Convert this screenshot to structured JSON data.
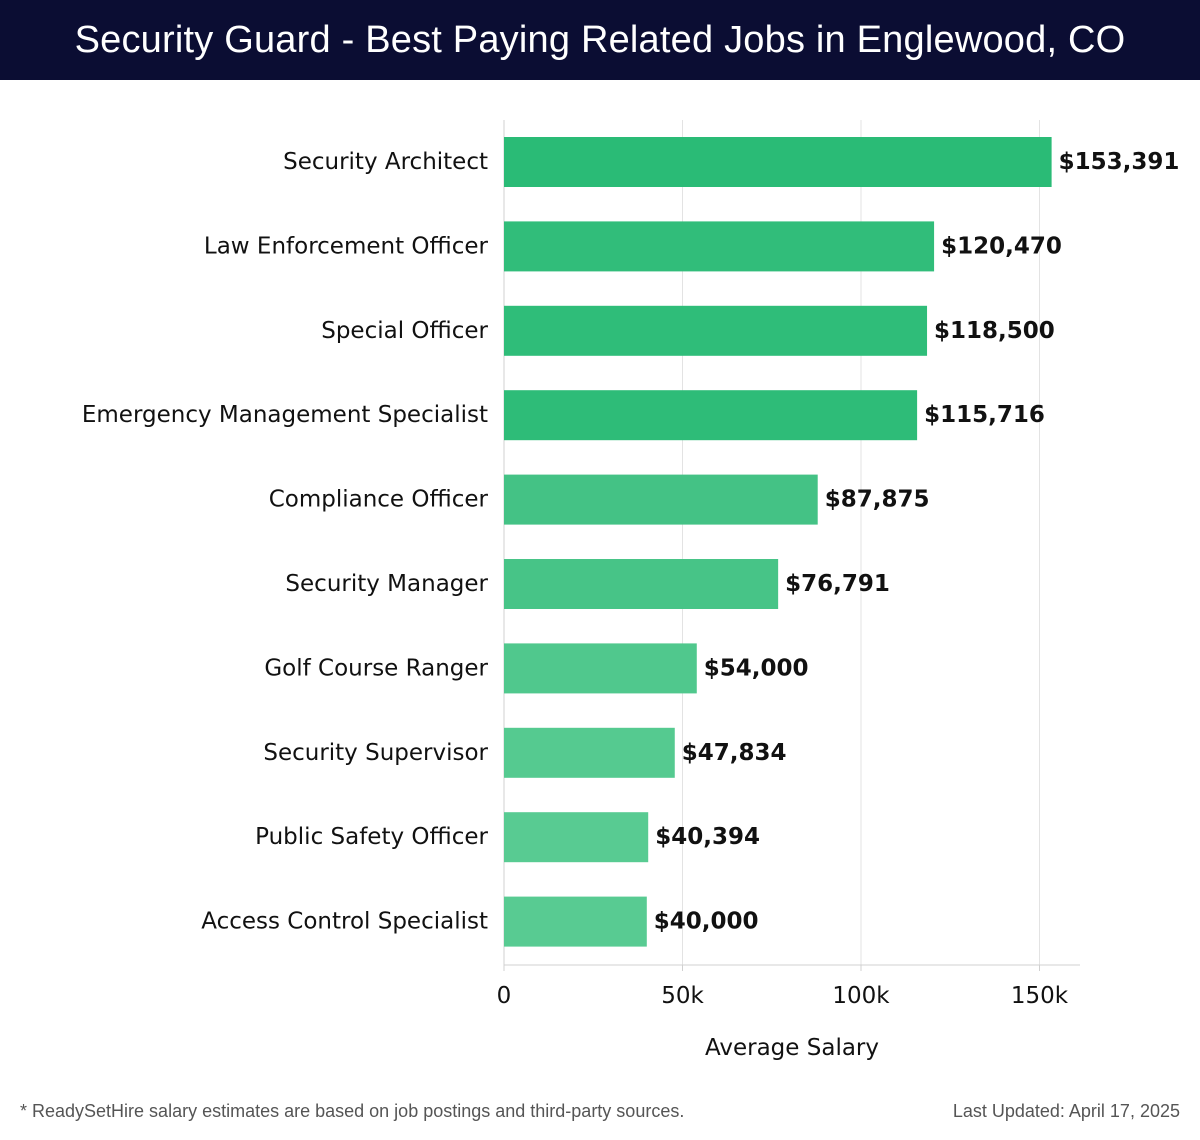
{
  "title": "Security Guard - Best Paying Related Jobs in Englewood, CO",
  "chart_data": {
    "type": "bar",
    "orientation": "horizontal",
    "categories": [
      "Security Architect",
      "Law Enforcement Officer",
      "Special Officer",
      "Emergency Management Specialist",
      "Compliance Officer",
      "Security Manager",
      "Golf Course Ranger",
      "Security Supervisor",
      "Public Safety Officer",
      "Access Control Specialist"
    ],
    "values": [
      153391,
      120470,
      118500,
      115716,
      87875,
      76791,
      54000,
      47834,
      40394,
      40000
    ],
    "data_labels": [
      "$153,391",
      "$120,470",
      "$118,500",
      "$115,716",
      "$87,875",
      "$76,791",
      "$54,000",
      "$47,834",
      "$40,394",
      "$40,000"
    ],
    "xlabel": "Average Salary",
    "ylabel": "",
    "xlim": [
      0,
      161000
    ],
    "xticks": [
      0,
      50000,
      100000,
      150000
    ],
    "xtick_labels": [
      "0",
      "50k",
      "100k",
      "150k"
    ],
    "grid": "vertical",
    "colors": [
      "#2abb76",
      "#31bd7a",
      "#2fbd79",
      "#2ebc78",
      "#44c285",
      "#47c487",
      "#50c88d",
      "#55ca90",
      "#58cb92",
      "#58cb92"
    ]
  },
  "footer": {
    "note": "* ReadySetHire salary estimates are based on job postings and third-party sources.",
    "updated": "Last Updated: April 17, 2025"
  }
}
